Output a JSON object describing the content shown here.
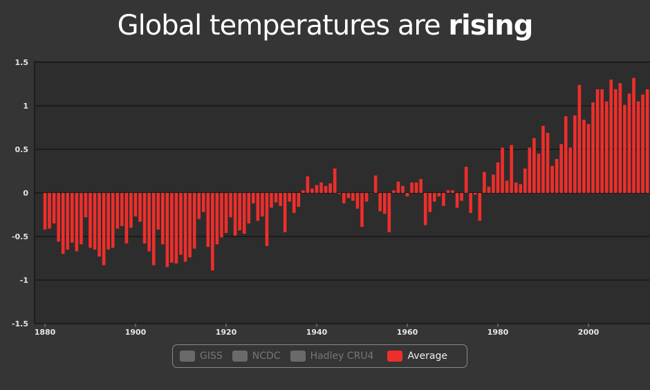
{
  "title": {
    "regular": "Global temperatures are ",
    "bold": "rising"
  },
  "legend": [
    {
      "label": "GISS",
      "color": "#6a6a6a",
      "active": false
    },
    {
      "label": "NCDC",
      "color": "#6a6a6a",
      "active": false
    },
    {
      "label": "Hadley CRU4",
      "color": "#6a6a6a",
      "active": false
    },
    {
      "label": "Average",
      "color": "#ee2e2b",
      "active": true
    }
  ],
  "chart_data": {
    "type": "bar",
    "title": "Global temperatures are rising",
    "xlabel": "",
    "ylabel": "",
    "ylim": [
      -1.5,
      1.5
    ],
    "yticks": [
      -1.5,
      -1,
      -0.5,
      0,
      0.5,
      1,
      1.5
    ],
    "ytick_labels": [
      "-1.5",
      "-1",
      "-0.5",
      "0",
      "0.5",
      "1",
      "1.5"
    ],
    "xticks": [
      1880,
      1900,
      1920,
      1940,
      1960,
      1980,
      2000
    ],
    "xtick_labels": [
      "1880",
      "1900",
      "1920",
      "1940",
      "1960",
      "1980",
      "2000"
    ],
    "grid": true,
    "legend_position": "bottom-center",
    "bar_color": "#ee2e2b",
    "x_start": 1880,
    "series": [
      {
        "name": "Average",
        "values": [
          -0.42,
          -0.41,
          -0.35,
          -0.56,
          -0.7,
          -0.65,
          -0.57,
          -0.67,
          -0.59,
          -0.28,
          -0.63,
          -0.65,
          -0.73,
          -0.83,
          -0.65,
          -0.63,
          -0.41,
          -0.38,
          -0.58,
          -0.4,
          -0.27,
          -0.33,
          -0.58,
          -0.67,
          -0.83,
          -0.42,
          -0.59,
          -0.85,
          -0.8,
          -0.81,
          -0.71,
          -0.79,
          -0.74,
          -0.64,
          -0.3,
          -0.22,
          -0.62,
          -0.89,
          -0.59,
          -0.51,
          -0.46,
          -0.28,
          -0.49,
          -0.43,
          -0.47,
          -0.35,
          -0.12,
          -0.32,
          -0.27,
          -0.61,
          -0.17,
          -0.11,
          -0.15,
          -0.45,
          -0.1,
          -0.23,
          -0.16,
          0.03,
          0.19,
          0.05,
          0.09,
          0.12,
          0.08,
          0.11,
          0.28,
          -0.01,
          -0.12,
          -0.06,
          -0.09,
          -0.18,
          -0.39,
          -0.1,
          0.0,
          0.2,
          -0.21,
          -0.24,
          -0.45,
          0.03,
          0.13,
          0.08,
          -0.04,
          0.12,
          0.12,
          0.16,
          -0.37,
          -0.22,
          -0.1,
          -0.04,
          -0.15,
          0.03,
          0.03,
          -0.17,
          -0.09,
          0.3,
          -0.23,
          -0.02,
          -0.32,
          0.24,
          0.07,
          0.21,
          0.35,
          0.52,
          0.14,
          0.55,
          0.12,
          0.1,
          0.28,
          0.52,
          0.63,
          0.45,
          0.77,
          0.69,
          0.31,
          0.39,
          0.56,
          0.88,
          0.52,
          0.89,
          1.24,
          0.84,
          0.79,
          1.04,
          1.19,
          1.19,
          1.05,
          1.3,
          1.19,
          1.26,
          1.01,
          1.14,
          1.32,
          1.05,
          1.13,
          1.19
        ]
      }
    ]
  }
}
